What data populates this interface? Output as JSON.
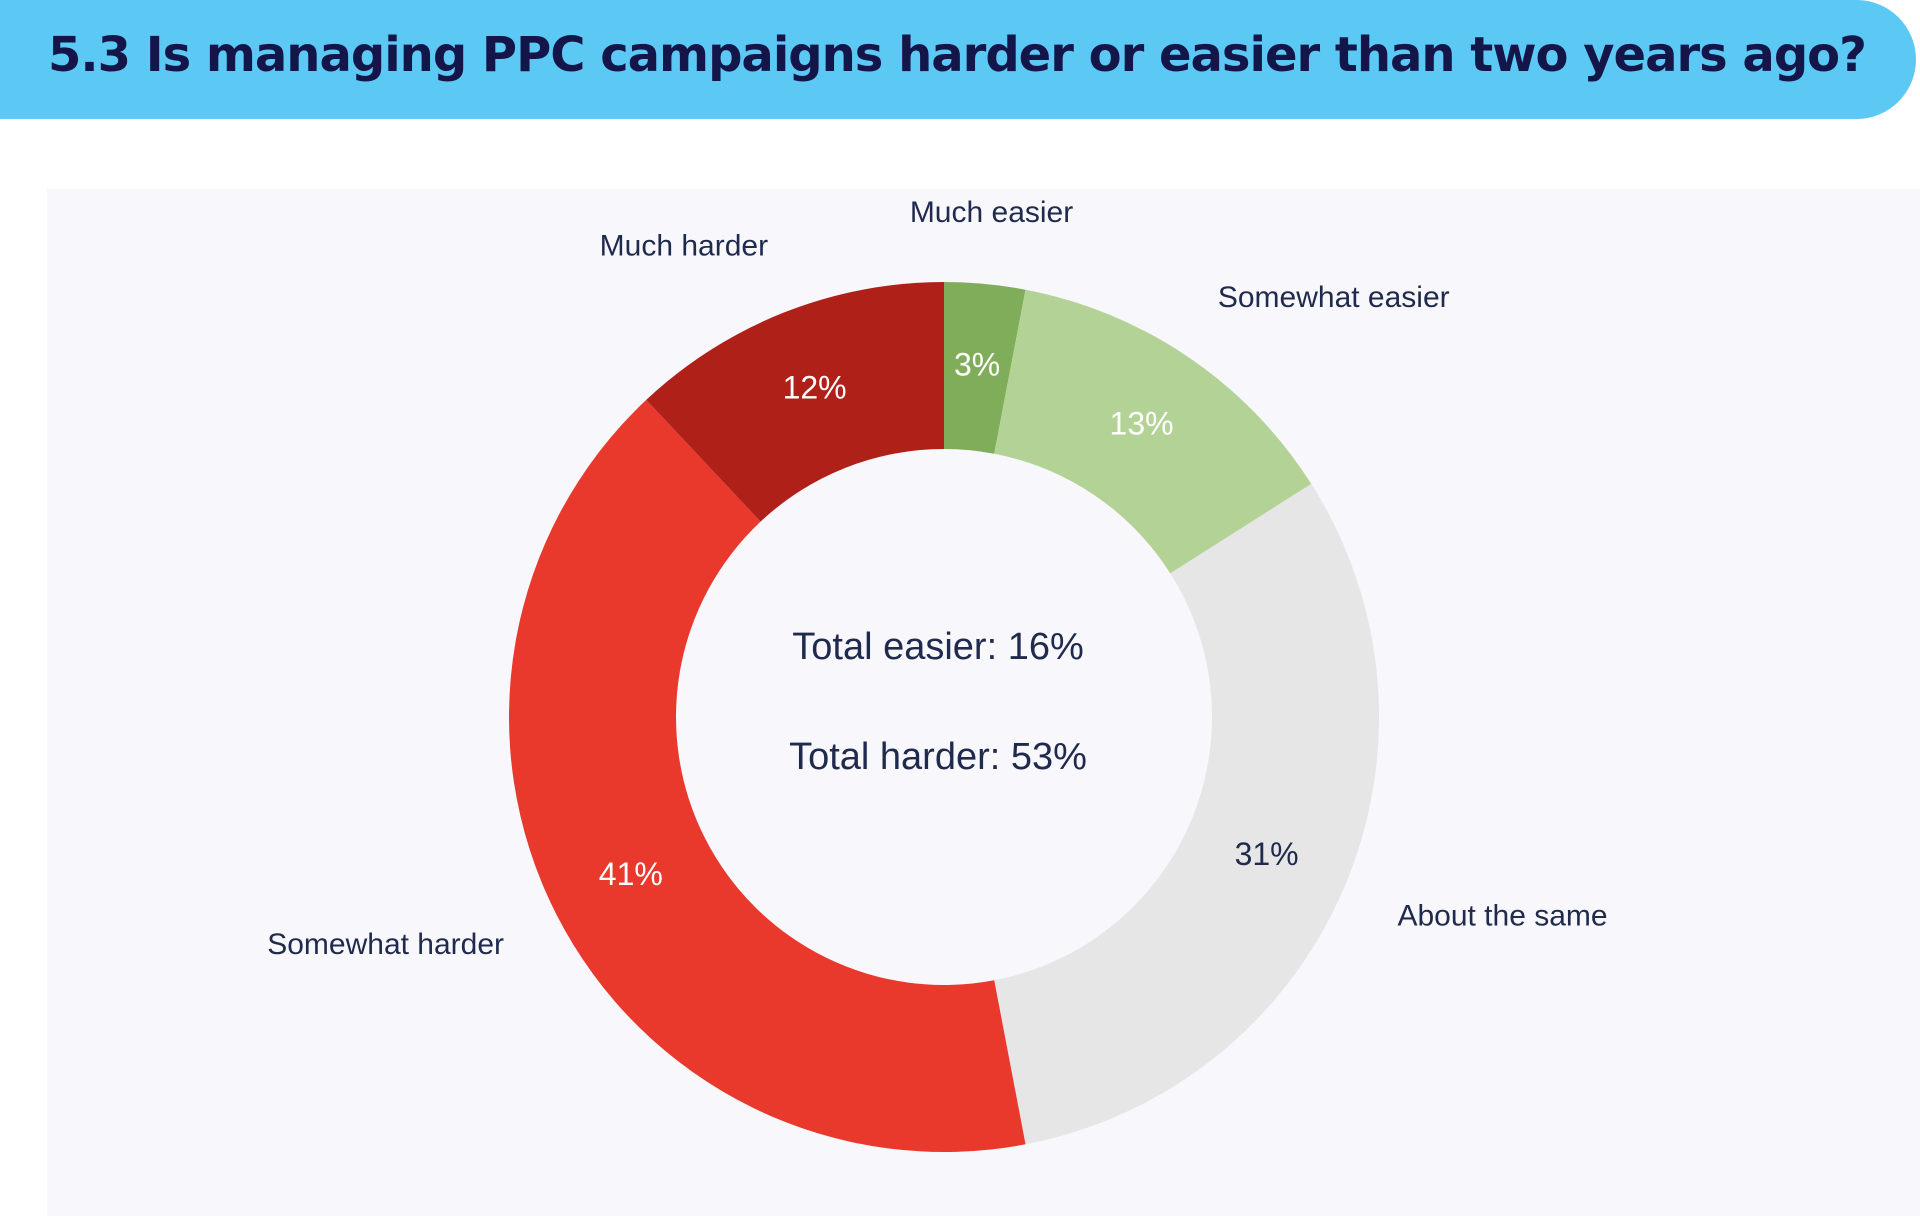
{
  "chart_data": {
    "type": "pie",
    "title": "5.3 Is managing PPC campaigns harder or easier than two years ago?",
    "categories": [
      "Much easier",
      "Somewhat easier",
      "About the same",
      "Somewhat harder",
      "Much harder"
    ],
    "values": [
      3,
      13,
      31,
      41,
      12
    ],
    "value_labels": [
      "3%",
      "13%",
      "31%",
      "41%",
      "12%"
    ],
    "colors": [
      "#7fad59",
      "#b3d396",
      "#e6e6e6",
      "#e8392c",
      "#af2018"
    ],
    "annotations": [
      "Total easier: 16%",
      "Total harder: 53%"
    ]
  }
}
